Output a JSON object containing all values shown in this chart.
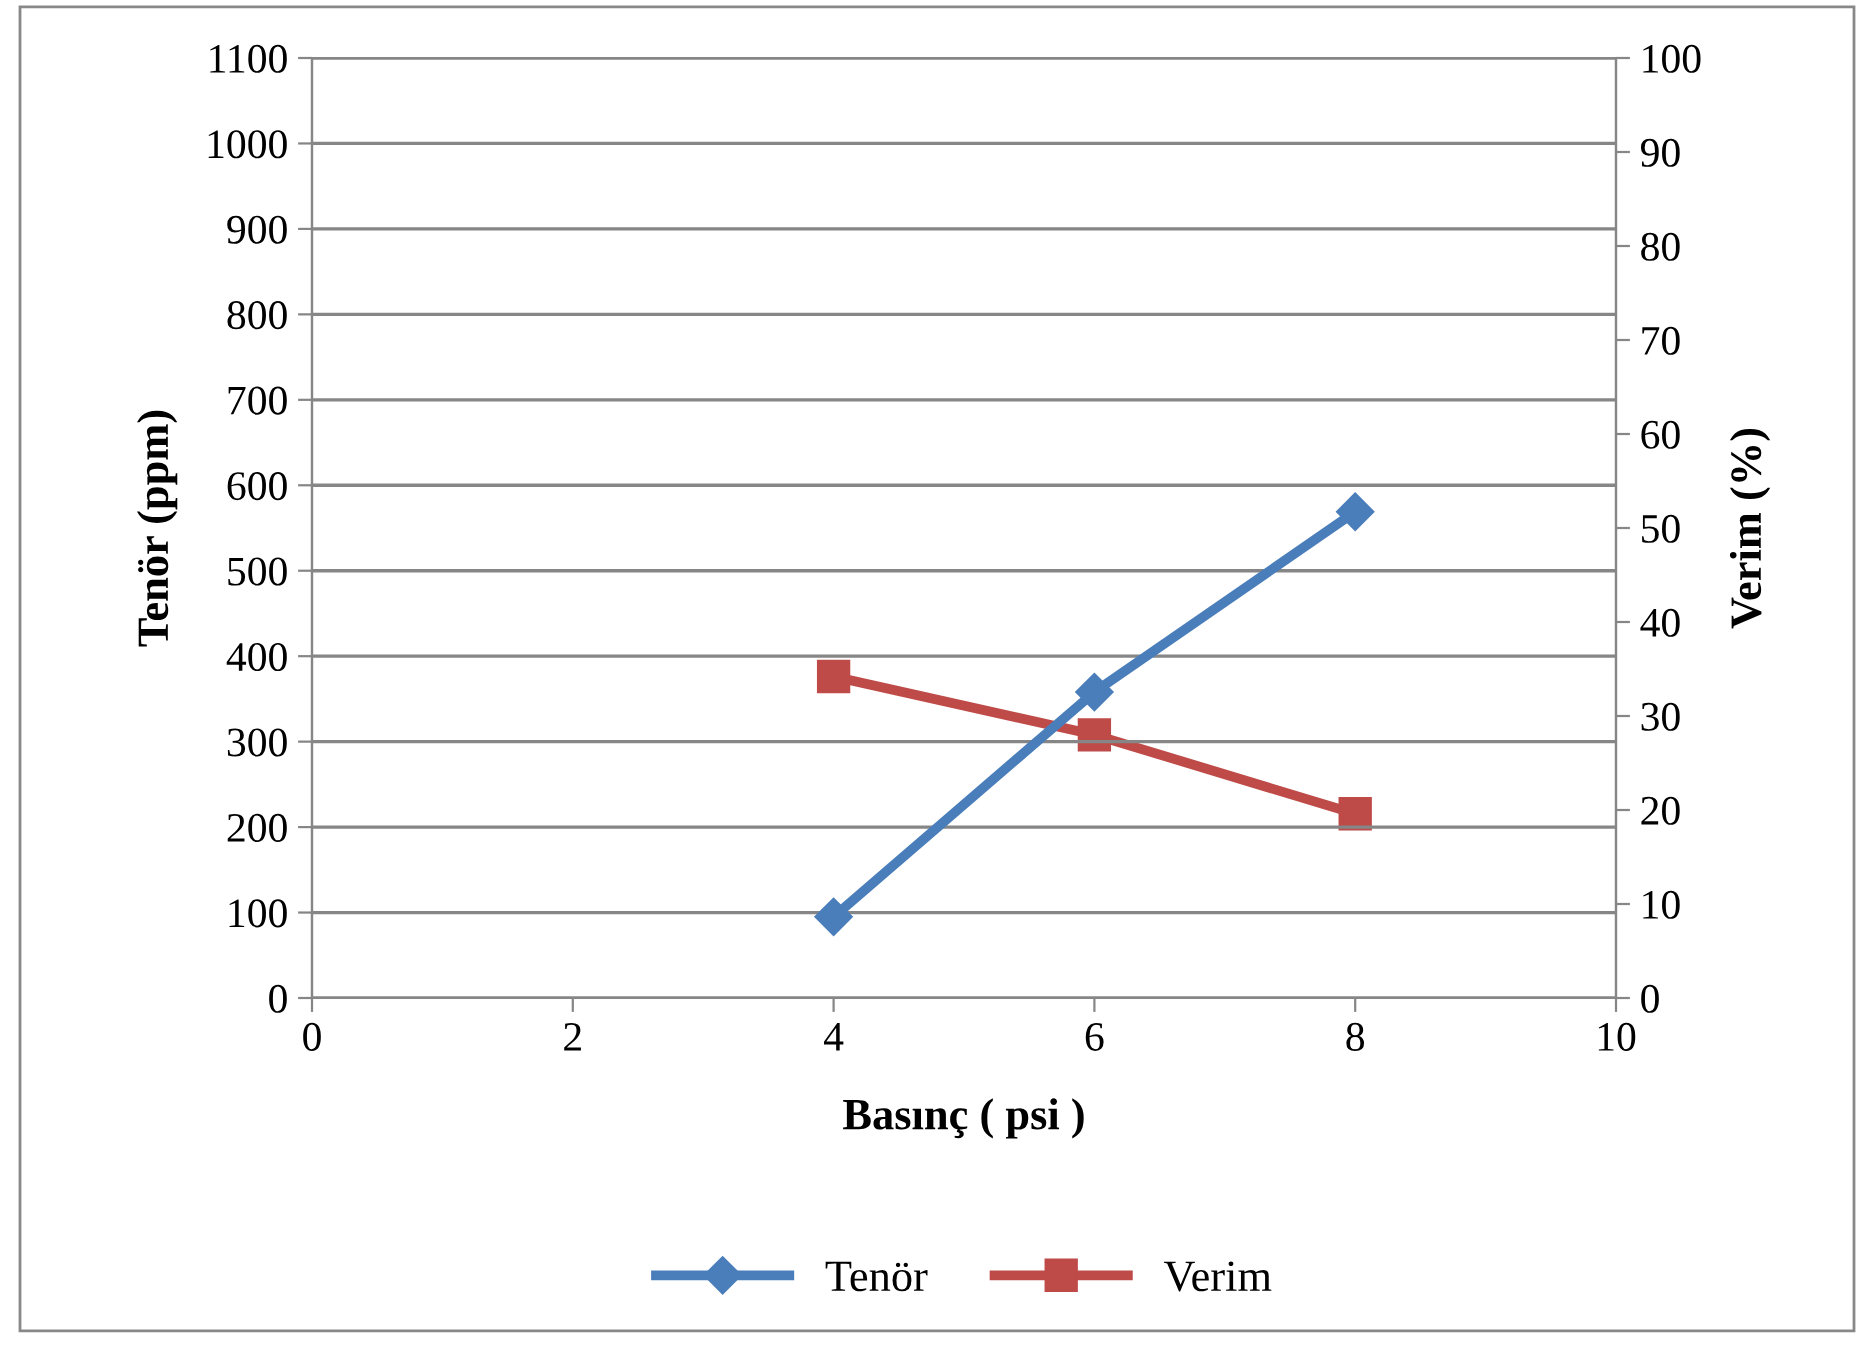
{
  "chart_data": {
    "type": "line",
    "xlabel": "Basınç ( psi )",
    "ylabel": "Tenör (ppm)",
    "y2label": "Verim (%)",
    "x": [
      4,
      6,
      8
    ],
    "series": [
      {
        "name": "Tenör",
        "color": "#4a7ebb",
        "values": [
          95,
          358,
          569
        ],
        "marker": "diamond"
      },
      {
        "name": "Verim",
        "color": "#be4b48",
        "values": [
          34.2,
          28.0,
          19.6
        ],
        "marker": "square",
        "axis": "y2"
      }
    ],
    "xlim": [
      0,
      10
    ],
    "xticks": [
      0,
      2,
      4,
      6,
      8,
      10
    ],
    "ylim": [
      0,
      1100
    ],
    "yticks": [
      0,
      100,
      200,
      300,
      400,
      500,
      600,
      700,
      800,
      900,
      1000,
      1100
    ],
    "y2lim": [
      0,
      100
    ],
    "y2ticks": [
      0,
      10,
      20,
      30,
      40,
      50,
      60,
      70,
      80,
      90,
      100
    ],
    "grid": "y",
    "legend": "bottom",
    "line_style": "solid"
  }
}
